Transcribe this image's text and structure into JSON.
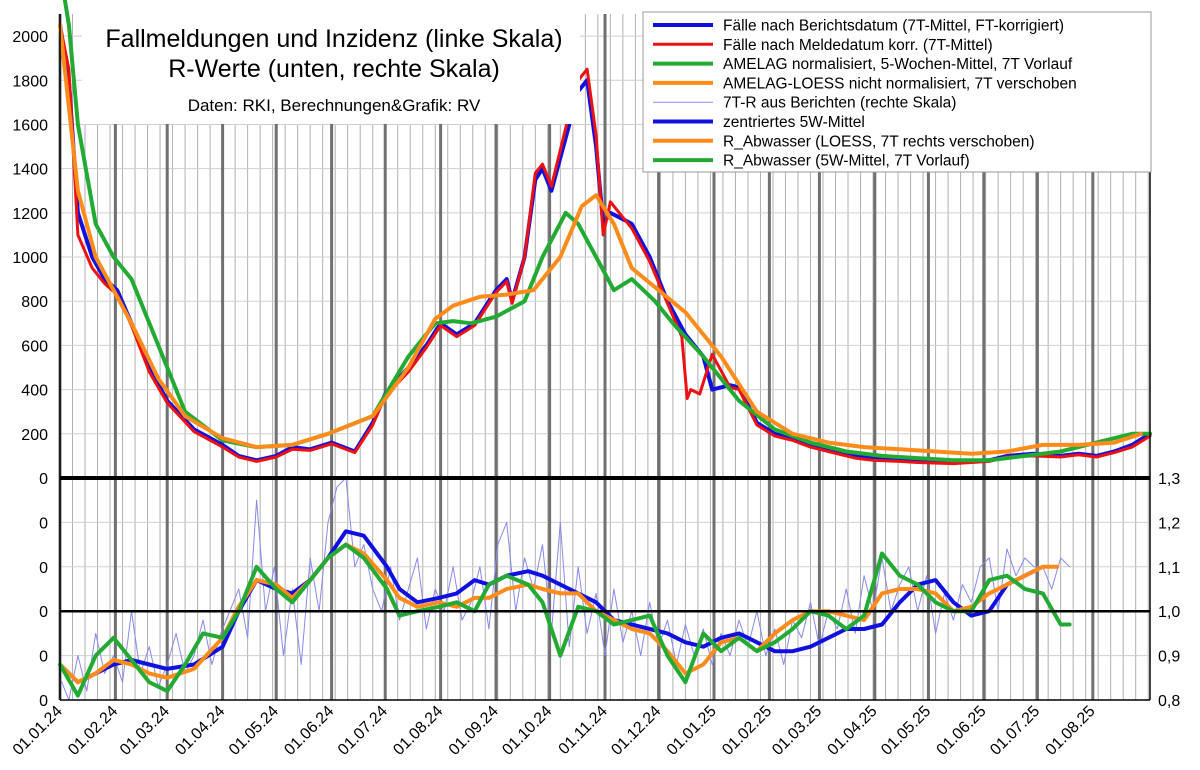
{
  "chart_data": {
    "type": "line",
    "title_line1": "Fallmeldungen und Inzidenz (linke Skala)",
    "title_line2": "R-Werte (unten, rechte Skala)",
    "source": "Daten: RKI, Berechnungen&Grafik: RV",
    "x_ticks": [
      "01.01.24",
      "01.02.24",
      "01.03.24",
      "01.04.24",
      "01.05.24",
      "01.06.24",
      "01.07.24",
      "01.08.24",
      "01.09.24",
      "01.10.24",
      "01.11.24",
      "01.12.24",
      "01.01.25",
      "01.02.25",
      "01.03.25",
      "01.04.25",
      "01.05.25",
      "01.06.25",
      "01.07.25",
      "01.08.25"
    ],
    "left_axis": {
      "ticks": [
        "0",
        "200",
        "400",
        "600",
        "800",
        "1000",
        "1200",
        "1400",
        "1600",
        "1800",
        "2000"
      ],
      "ylim": [
        0,
        2000
      ]
    },
    "left_axis_lower_ticks": [
      "0",
      "0",
      "0",
      "0",
      "0",
      "0"
    ],
    "right_axis": {
      "ticks": [
        "0,8",
        "0,9",
        "1,0",
        "1,1",
        "1,2",
        "1,3"
      ],
      "ylim": [
        0.8,
        1.3
      ]
    },
    "legend": [
      {
        "label": "Fälle nach Berichtsdatum (7T-Mittel, FT-korrigiert)",
        "color": "#1010e0",
        "width": 4
      },
      {
        "label": "Fälle nach Meldedatum korr. (7T-Mittel)",
        "color": "#ee1111",
        "width": 3
      },
      {
        "label": "AMELAG normalisiert, 5-Wochen-Mittel, 7T Vorlauf",
        "color": "#22aa33",
        "width": 4
      },
      {
        "label": "AMELAG-LOESS nicht normalisiert, 7T verschoben",
        "color": "#ff8c1a",
        "width": 4
      },
      {
        "label": "7T-R aus Berichten (rechte Skala)",
        "color": "#8888ee",
        "width": 1
      },
      {
        "label": "zentriertes 5W-Mittel",
        "color": "#1010e0",
        "width": 4
      },
      {
        "label": "R_Abwasser (LOESS, 7T rechts verschoben)",
        "color": "#ff8c1a",
        "width": 4
      },
      {
        "label": "R_Abwasser (5W-Mittel, 7T Vorlauf)",
        "color": "#22aa33",
        "width": 4
      }
    ],
    "series": [
      {
        "name": "Fälle nach Berichtsdatum (7T-Mittel, FT-korrigiert)",
        "axis": "left",
        "x": [
          0,
          5,
          10,
          18,
          25,
          32,
          40,
          50,
          60,
          75,
          91,
          100,
          110,
          121,
          130,
          140,
          152,
          165,
          175,
          182,
          195,
          205,
          213,
          222,
          232,
          244,
          250,
          253,
          260,
          266,
          270,
          275,
          285,
          290,
          295,
          300,
          304,
          308,
          313,
          320,
          330,
          340,
          350,
          360,
          365,
          375,
          380,
          390,
          400,
          410,
          420,
          430,
          440,
          445,
          455,
          470,
          480,
          500,
          520,
          530,
          545,
          560,
          570,
          580,
          590,
          600,
          610
        ],
        "y": [
          2050,
          1800,
          1200,
          1000,
          900,
          850,
          700,
          500,
          350,
          220,
          150,
          100,
          80,
          100,
          140,
          130,
          160,
          120,
          250,
          380,
          500,
          600,
          700,
          650,
          700,
          850,
          900,
          800,
          1000,
          1350,
          1400,
          1300,
          1600,
          1750,
          1800,
          1500,
          1150,
          1200,
          1180,
          1150,
          1000,
          800,
          650,
          550,
          400,
          420,
          410,
          250,
          200,
          180,
          150,
          130,
          110,
          100,
          95,
          90,
          80,
          70,
          80,
          100,
          110,
          100,
          110,
          100,
          120,
          150,
          200
        ]
      },
      {
        "name": "Fälle nach Meldedatum korr. (7T-Mittel)",
        "axis": "left",
        "x": [
          0,
          5,
          10,
          18,
          25,
          32,
          40,
          50,
          60,
          75,
          91,
          100,
          110,
          121,
          130,
          140,
          152,
          165,
          175,
          182,
          195,
          205,
          213,
          222,
          232,
          244,
          250,
          253,
          260,
          266,
          270,
          275,
          285,
          290,
          295,
          300,
          304,
          308,
          313,
          320,
          330,
          340,
          348,
          351,
          353,
          358,
          365,
          375,
          380,
          390,
          400,
          410,
          420,
          430,
          440,
          445,
          455,
          470,
          480,
          500,
          520,
          530,
          545,
          560,
          570,
          580,
          590,
          600,
          610
        ],
        "y": [
          2050,
          1850,
          1100,
          950,
          880,
          830,
          690,
          480,
          340,
          210,
          140,
          95,
          75,
          95,
          130,
          125,
          155,
          115,
          240,
          370,
          480,
          590,
          690,
          640,
          690,
          840,
          890,
          790,
          1000,
          1380,
          1420,
          1320,
          1650,
          1800,
          1850,
          1550,
          1100,
          1250,
          1200,
          1130,
          980,
          790,
          640,
          360,
          400,
          380,
          560,
          410,
          400,
          240,
          190,
          170,
          140,
          120,
          100,
          90,
          80,
          75,
          70,
          65,
          75,
          95,
          100,
          95,
          105,
          95,
          115,
          140,
          190
        ]
      },
      {
        "name": "AMELAG normalisiert, 5-Wochen-Mittel, 7T Vorlauf",
        "axis": "left",
        "x": [
          0,
          5,
          10,
          20,
          30,
          40,
          55,
          70,
          91,
          110,
          130,
          150,
          175,
          195,
          210,
          220,
          230,
          244,
          260,
          270,
          283,
          290,
          300,
          310,
          320,
          333,
          343,
          360,
          380,
          400,
          420,
          440,
          460,
          480,
          500,
          520,
          540,
          560,
          580,
          600,
          610
        ],
        "y": [
          2300,
          2050,
          1600,
          1150,
          1000,
          900,
          600,
          300,
          170,
          140,
          150,
          200,
          280,
          550,
          700,
          710,
          700,
          730,
          800,
          1000,
          1200,
          1150,
          1000,
          850,
          900,
          800,
          700,
          550,
          350,
          220,
          160,
          120,
          100,
          90,
          80,
          80,
          100,
          120,
          160,
          200,
          200
        ]
      },
      {
        "name": "AMELAG-LOESS nicht normalisiert, 7T verschoben",
        "axis": "left",
        "x": [
          0,
          10,
          20,
          30,
          40,
          55,
          70,
          91,
          110,
          130,
          150,
          175,
          195,
          210,
          220,
          235,
          250,
          265,
          280,
          292,
          300,
          310,
          320,
          335,
          350,
          370,
          390,
          410,
          430,
          450,
          470,
          490,
          510,
          530,
          550,
          570,
          590,
          605
        ],
        "y": [
          2050,
          1300,
          1000,
          850,
          700,
          450,
          280,
          180,
          140,
          150,
          200,
          280,
          500,
          720,
          780,
          820,
          830,
          850,
          1000,
          1230,
          1280,
          1150,
          950,
          850,
          750,
          550,
          300,
          200,
          160,
          140,
          130,
          120,
          110,
          120,
          150,
          150,
          160,
          200
        ]
      },
      {
        "name": "zentriertes 5W-Mittel",
        "axis": "right",
        "x": [
          0,
          10,
          20,
          30,
          40,
          50,
          60,
          75,
          91,
          100,
          110,
          121,
          130,
          140,
          150,
          160,
          170,
          183,
          190,
          200,
          212,
          222,
          232,
          240,
          250,
          262,
          270,
          280,
          290,
          300,
          310,
          320,
          330,
          340,
          350,
          360,
          370,
          380,
          390,
          400,
          410,
          420,
          430,
          440,
          450,
          460,
          470,
          480,
          490,
          500,
          510,
          520,
          530,
          540,
          545
        ],
        "y": [
          0.88,
          0.84,
          0.86,
          0.88,
          0.89,
          0.88,
          0.87,
          0.88,
          0.92,
          1.0,
          1.07,
          1.05,
          1.04,
          1.07,
          1.12,
          1.18,
          1.17,
          1.1,
          1.05,
          1.02,
          1.03,
          1.04,
          1.07,
          1.06,
          1.08,
          1.09,
          1.08,
          1.06,
          1.04,
          1.02,
          0.98,
          0.97,
          0.96,
          0.95,
          0.93,
          0.92,
          0.94,
          0.95,
          0.93,
          0.91,
          0.91,
          0.92,
          0.94,
          0.96,
          0.96,
          0.97,
          1.02,
          1.06,
          1.07,
          1.02,
          0.99,
          1.0,
          1.06,
          1.08,
          1.09
        ]
      },
      {
        "name": "R_Abwasser (LOESS, 7T rechts verschoben)",
        "axis": "right",
        "x": [
          0,
          10,
          20,
          30,
          40,
          50,
          60,
          75,
          91,
          100,
          110,
          121,
          130,
          140,
          150,
          160,
          170,
          183,
          190,
          200,
          212,
          222,
          232,
          240,
          250,
          262,
          270,
          280,
          290,
          300,
          310,
          320,
          330,
          340,
          350,
          360,
          370,
          380,
          390,
          400,
          410,
          420,
          430,
          440,
          450,
          460,
          470,
          480,
          490,
          500,
          510,
          520,
          530,
          540,
          550,
          558
        ],
        "y": [
          0.88,
          0.84,
          0.86,
          0.89,
          0.88,
          0.86,
          0.85,
          0.87,
          0.94,
          1.01,
          1.07,
          1.06,
          1.03,
          1.07,
          1.12,
          1.15,
          1.13,
          1.07,
          1.03,
          1.01,
          1.02,
          1.01,
          1.03,
          1.03,
          1.05,
          1.06,
          1.05,
          1.04,
          1.04,
          1.0,
          0.98,
          0.96,
          0.95,
          0.91,
          0.86,
          0.88,
          0.93,
          0.94,
          0.91,
          0.95,
          0.98,
          1.0,
          1.0,
          0.99,
          0.98,
          1.04,
          1.05,
          1.05,
          1.04,
          1.0,
          1.01,
          1.04,
          1.06,
          1.08,
          1.1,
          1.1
        ]
      },
      {
        "name": "R_Abwasser (5W-Mittel, 7T Vorlauf)",
        "axis": "right",
        "x": [
          0,
          10,
          20,
          30,
          40,
          50,
          60,
          70,
          80,
          91,
          100,
          110,
          121,
          130,
          140,
          150,
          160,
          170,
          183,
          190,
          200,
          212,
          222,
          232,
          240,
          250,
          262,
          270,
          280,
          290,
          300,
          310,
          320,
          330,
          340,
          350,
          360,
          370,
          380,
          390,
          400,
          410,
          420,
          430,
          440,
          450,
          460,
          470,
          480,
          490,
          500,
          510,
          520,
          530,
          540,
          550,
          560,
          565
        ],
        "y": [
          0.88,
          0.81,
          0.9,
          0.94,
          0.89,
          0.84,
          0.82,
          0.88,
          0.95,
          0.94,
          1.0,
          1.1,
          1.05,
          1.02,
          1.07,
          1.12,
          1.15,
          1.12,
          1.05,
          0.99,
          1.0,
          1.01,
          1.02,
          1.0,
          1.06,
          1.08,
          1.06,
          1.02,
          0.9,
          1.01,
          1.0,
          0.97,
          0.98,
          0.99,
          0.9,
          0.84,
          0.95,
          0.91,
          0.94,
          0.91,
          0.93,
          0.96,
          1.0,
          0.99,
          0.96,
          0.99,
          1.13,
          1.08,
          1.06,
          1.02,
          1.0,
          1.0,
          1.07,
          1.08,
          1.05,
          1.04,
          0.97,
          0.97
        ]
      },
      {
        "name": "7T-R aus Berichten (rechte Skala)",
        "axis": "right",
        "x": [
          0,
          5,
          10,
          15,
          20,
          25,
          30,
          35,
          40,
          45,
          50,
          55,
          60,
          65,
          70,
          75,
          80,
          85,
          90,
          95,
          100,
          105,
          110,
          115,
          120,
          125,
          130,
          135,
          140,
          145,
          150,
          155,
          160,
          165,
          170,
          175,
          180,
          185,
          190,
          195,
          200,
          205,
          210,
          215,
          220,
          225,
          230,
          235,
          240,
          245,
          250,
          255,
          260,
          265,
          270,
          275,
          280,
          285,
          290,
          295,
          300,
          305,
          310,
          315,
          320,
          325,
          330,
          335,
          340,
          345,
          350,
          355,
          360,
          365,
          370,
          375,
          380,
          385,
          390,
          395,
          400,
          405,
          410,
          415,
          420,
          425,
          430,
          435,
          440,
          445,
          450,
          455,
          460,
          465,
          470,
          475,
          480,
          485,
          490,
          495,
          500,
          505,
          510,
          515,
          520,
          525,
          530,
          535,
          540,
          545,
          550,
          555,
          560,
          565
        ],
        "y": [
          0.85,
          0.8,
          0.9,
          0.82,
          0.95,
          0.86,
          0.9,
          0.84,
          1.0,
          0.86,
          0.92,
          0.83,
          0.88,
          0.95,
          0.86,
          0.9,
          0.98,
          0.88,
          0.95,
          1.0,
          1.05,
          0.94,
          1.25,
          1.0,
          1.1,
          0.9,
          1.05,
          0.88,
          1.12,
          1.0,
          1.2,
          1.28,
          1.3,
          1.1,
          1.15,
          1.05,
          1.0,
          1.1,
          0.98,
          1.05,
          1.12,
          0.96,
          1.05,
          1.0,
          1.1,
          0.98,
          1.02,
          1.1,
          0.96,
          1.15,
          1.2,
          1.0,
          1.12,
          1.05,
          1.15,
          0.95,
          1.2,
          0.92,
          1.1,
          0.95,
          1.04,
          0.9,
          1.05,
          0.93,
          1.0,
          0.9,
          1.02,
          0.92,
          0.98,
          0.88,
          0.97,
          0.9,
          0.96,
          0.88,
          0.95,
          0.9,
          0.98,
          0.92,
          1.0,
          0.9,
          0.96,
          0.88,
          0.98,
          0.94,
          1.02,
          0.92,
          1.0,
          0.96,
          1.05,
          0.95,
          1.08,
          1.0,
          1.12,
          1.0,
          1.06,
          1.1,
          1.0,
          1.08,
          0.95,
          1.04,
          0.98,
          1.06,
          1.02,
          1.1,
          1.12,
          1.0,
          1.14,
          1.08,
          1.12,
          1.1,
          1.1,
          1.05,
          1.12,
          1.1
        ]
      }
    ]
  }
}
